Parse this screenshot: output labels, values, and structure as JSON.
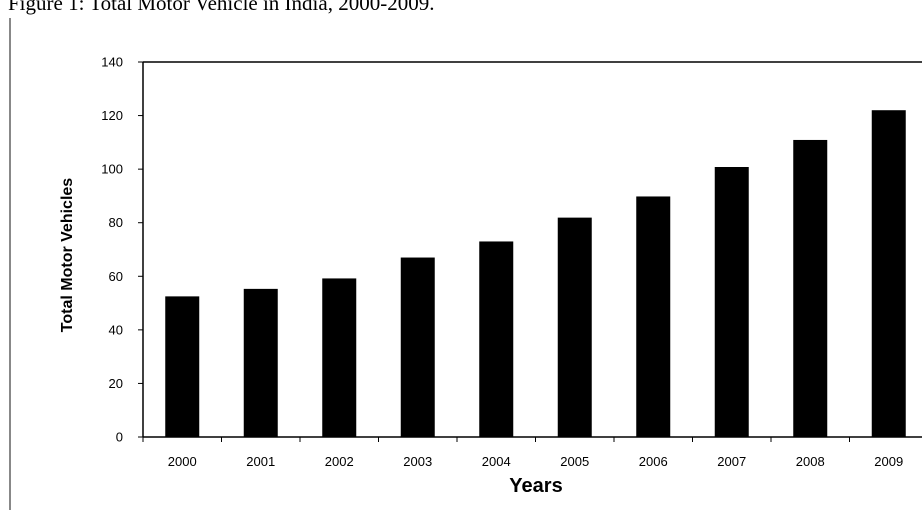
{
  "caption": "Figure 1: Total Motor Vehicle in India, 2000-2009.",
  "chart_data": {
    "type": "bar",
    "categories": [
      "2000",
      "2001",
      "2002",
      "2003",
      "2004",
      "2005",
      "2006",
      "2007",
      "2008",
      "2009"
    ],
    "values": [
      52.5,
      55.3,
      59.2,
      67.0,
      73.0,
      81.9,
      89.8,
      100.8,
      110.9,
      122.0
    ],
    "title": "",
    "xlabel": "Years",
    "ylabel": "Total Motor Vehicles",
    "ylim": [
      0,
      140
    ],
    "yticks": [
      "0",
      "20",
      "40",
      "60",
      "80",
      "100",
      "120",
      "140"
    ],
    "grid": false,
    "legend": "none",
    "bar_color": "#000000"
  }
}
